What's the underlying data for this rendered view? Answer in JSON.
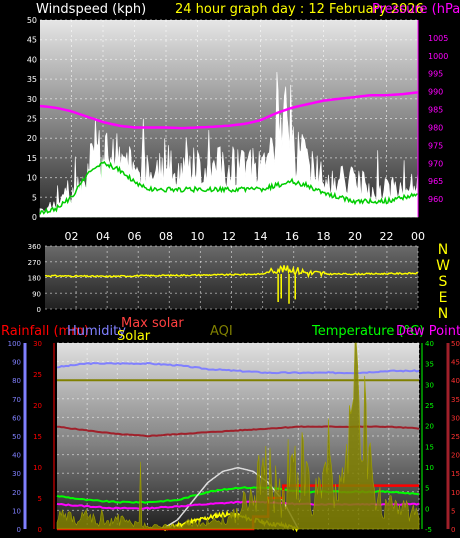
{
  "chart_data": [
    {
      "type": "line",
      "title": "24 hour graph day : 12 February 2026",
      "ylabel_left": "Windspeed (kph)",
      "ylabel_right": "Pressure (hPa)",
      "x_ticks": [
        "02",
        "04",
        "06",
        "08",
        "10",
        "12",
        "14",
        "16",
        "18",
        "20",
        "22",
        "00"
      ],
      "ylim_left": [
        0,
        50
      ],
      "y_ticks_left": [
        0,
        5,
        10,
        15,
        20,
        25,
        30,
        35,
        40,
        45,
        50
      ],
      "ylim_right": [
        955,
        1010
      ],
      "y_ticks_right": [
        960,
        965,
        970,
        975,
        980,
        985,
        990,
        995,
        1000,
        1005
      ],
      "grid": true,
      "colors": {
        "gust": "#ffffff",
        "avg_band": "#c8ffc8",
        "avg_line": "#00cc00",
        "pressure": "#ff00ff",
        "title": "#ffff00",
        "ylabel_left": "#ffffff",
        "ylabel_right": "#ff00ff"
      },
      "series": [
        {
          "id": "pressure",
          "x": [
            0,
            1,
            2,
            3,
            4,
            5,
            6,
            7,
            8,
            9,
            10,
            11,
            12,
            13,
            14,
            15,
            16,
            17,
            18,
            19,
            20,
            21,
            22,
            23,
            24
          ],
          "values": [
            986,
            985.5,
            984.5,
            983,
            981.5,
            980.5,
            980,
            980,
            980,
            979.8,
            980,
            980.2,
            980.5,
            981,
            982,
            984,
            985.5,
            986.5,
            987.5,
            988,
            988.5,
            989,
            989,
            989.3,
            989.8
          ]
        },
        {
          "id": "gust",
          "x": [
            0,
            1,
            2,
            3,
            4,
            5,
            6,
            7,
            8,
            9,
            10,
            11,
            12,
            13,
            14,
            15,
            16,
            17,
            18,
            19,
            20,
            21,
            22,
            23,
            24
          ],
          "values": [
            2,
            3,
            6,
            13,
            16,
            15,
            12,
            11,
            13,
            12,
            13,
            12,
            13,
            12,
            15,
            18,
            17,
            14,
            11,
            9,
            9,
            7,
            7,
            8,
            8
          ]
        },
        {
          "id": "avg_band",
          "x": [
            0,
            1,
            2,
            3,
            4,
            5,
            6,
            7,
            8,
            9,
            10,
            11,
            12,
            13,
            14,
            15,
            16,
            17,
            18,
            19,
            20,
            21,
            22,
            23,
            24
          ],
          "values": [
            1,
            2,
            4,
            9,
            11,
            10,
            8,
            6,
            6,
            6,
            6,
            6,
            6,
            6,
            6,
            8,
            8,
            7,
            6,
            5,
            4,
            4,
            4,
            5,
            5
          ]
        },
        {
          "id": "avg_line",
          "x": [
            0,
            1,
            2,
            3,
            4,
            5,
            6,
            7,
            8,
            9,
            10,
            11,
            12,
            13,
            14,
            15,
            16,
            17,
            18,
            19,
            20,
            21,
            22,
            23,
            24
          ],
          "values": [
            1,
            2,
            5,
            11,
            14,
            12,
            9,
            7,
            7,
            7,
            7,
            7,
            7,
            7,
            7,
            8,
            9,
            8,
            6,
            5,
            4,
            4,
            4,
            5,
            6
          ]
        }
      ]
    },
    {
      "type": "scatter",
      "ylim": [
        0,
        360
      ],
      "y_ticks": [
        0,
        90,
        180,
        270,
        360
      ],
      "compass_labels": [
        "N",
        "W",
        "S",
        "E",
        "N"
      ],
      "grid": true,
      "colors": {
        "direction": "#ffff00",
        "compass": "#ffff00"
      },
      "series": [
        {
          "id": "wind_direction",
          "x": [
            0,
            2,
            4,
            6,
            8,
            10,
            12,
            14,
            15,
            16,
            17,
            18,
            20,
            22,
            24
          ],
          "values": [
            190,
            188,
            186,
            190,
            192,
            194,
            196,
            200,
            230,
            225,
            205,
            200,
            200,
            202,
            204
          ]
        }
      ]
    },
    {
      "type": "line",
      "ylabels": {
        "rainfall": "Rainfall (mm)",
        "humidity": "Humidity",
        "solar": "Solar",
        "max_solar": "Max solar",
        "aqi": "AQI",
        "temperature": "Temperature (°C)",
        "dewpoint": "Dew Point"
      },
      "ylim_humidity": [
        0,
        100
      ],
      "y_ticks_humidity": [
        0,
        10,
        20,
        30,
        40,
        50,
        60,
        70,
        80,
        90,
        100
      ],
      "ylim_rain": [
        0,
        30
      ],
      "y_ticks_rain": [
        0,
        5,
        10,
        15,
        20,
        25,
        30
      ],
      "ylim_temp": [
        -5,
        40
      ],
      "y_ticks_temp": [
        -5,
        0,
        5,
        10,
        15,
        20,
        25,
        30,
        35,
        40
      ],
      "ylim_aqi": [
        0,
        50
      ],
      "y_ticks_aqi": [
        0,
        5,
        10,
        15,
        20,
        25,
        30,
        35,
        40,
        45,
        50
      ],
      "grid": true,
      "colors": {
        "rainfall": "#ff0000",
        "humidity": "#8080ff",
        "solar": "#ffff00",
        "max_solar": "#dddddd",
        "aqi": "#808000",
        "temperature": "#00ff00",
        "dewpoint": "#ff00ff",
        "maroon": "#a0202a"
      },
      "series": [
        {
          "id": "humidity",
          "x": [
            0,
            2,
            4,
            6,
            8,
            10,
            12,
            14,
            16,
            18,
            20,
            22,
            24
          ],
          "values": [
            87,
            89,
            89,
            89,
            88,
            86,
            85,
            84,
            84,
            84,
            84,
            85,
            85
          ]
        },
        {
          "id": "maroon_line",
          "x": [
            0,
            2,
            4,
            6,
            8,
            10,
            12,
            14,
            16,
            18,
            20,
            22,
            24
          ],
          "values": [
            55,
            53,
            51,
            50,
            51,
            52,
            53,
            54,
            55,
            55,
            55,
            55,
            54
          ]
        },
        {
          "id": "aqi_level",
          "x": [
            0,
            24
          ],
          "values": [
            40,
            40
          ]
        },
        {
          "id": "temperature",
          "x": [
            0,
            2,
            4,
            6,
            8,
            10,
            12,
            14,
            16,
            18,
            20,
            22,
            24
          ],
          "values": [
            3,
            2,
            1.5,
            1.5,
            2,
            4,
            5,
            5,
            4,
            4,
            4,
            4,
            3.5
          ]
        },
        {
          "id": "rainfall",
          "x": [
            0,
            12,
            13,
            14,
            15,
            16,
            24
          ],
          "values": [
            0,
            0,
            2,
            5,
            7,
            7,
            7
          ]
        },
        {
          "id": "max_solar",
          "x": [
            7,
            8,
            9,
            10,
            11,
            12,
            13,
            14,
            15,
            16
          ],
          "values": [
            0,
            5,
            15,
            25,
            31,
            33,
            31,
            25,
            15,
            0
          ]
        },
        {
          "id": "solar",
          "x": [
            7,
            8,
            9,
            10,
            11,
            12,
            13,
            14,
            15,
            16
          ],
          "values": [
            0,
            2,
            4,
            6,
            8,
            7,
            5,
            3,
            2,
            0
          ]
        },
        {
          "id": "dewpoint",
          "x": [
            0,
            2,
            4,
            6,
            8,
            10,
            12,
            14,
            16,
            18,
            20,
            22,
            24
          ],
          "values": [
            1,
            0.5,
            0,
            0,
            0.5,
            1,
            1.5,
            1.5,
            1,
            1,
            1,
            1,
            1
          ]
        },
        {
          "id": "aqi",
          "x": [
            0,
            1,
            2,
            3,
            4,
            5,
            6,
            7,
            8,
            9,
            10,
            11,
            12,
            13,
            14,
            15,
            16,
            17,
            18,
            19,
            20,
            21,
            22,
            23,
            24
          ],
          "values": [
            5,
            3,
            4,
            2,
            3,
            2,
            1,
            1,
            1,
            2,
            2,
            3,
            5,
            12,
            18,
            8,
            22,
            10,
            14,
            20,
            47,
            10,
            8,
            6,
            4
          ]
        }
      ]
    }
  ]
}
